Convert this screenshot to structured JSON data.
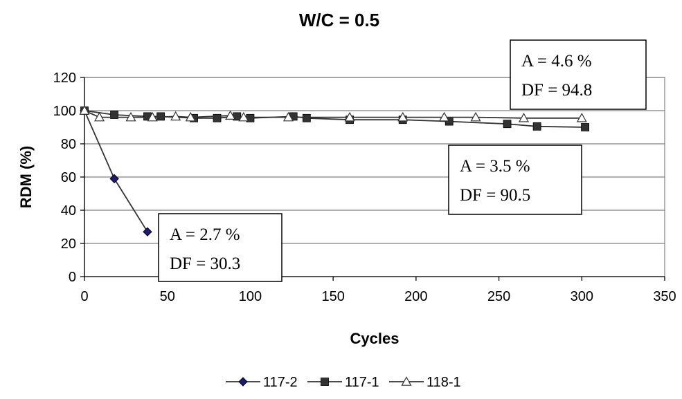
{
  "chart_data": {
    "type": "line",
    "title": "W/C = 0.5",
    "xlabel": "Cycles",
    "ylabel": "RDM (%)",
    "xlim": [
      0,
      350
    ],
    "ylim": [
      0,
      120
    ],
    "xticks": [
      0,
      50,
      100,
      150,
      200,
      250,
      300,
      350
    ],
    "yticks": [
      0,
      20,
      40,
      60,
      80,
      100,
      120
    ],
    "grid": "horizontal",
    "legend": "bottom",
    "series": [
      {
        "name": "117-2",
        "marker": "diamond",
        "color": "#1a1a7a",
        "x": [
          0,
          18,
          38
        ],
        "y": [
          100,
          59,
          27
        ]
      },
      {
        "name": "117-1",
        "marker": "square",
        "color": "#333333",
        "x": [
          0,
          18,
          38,
          46,
          66,
          80,
          92,
          100,
          126,
          134,
          160,
          192,
          220,
          255,
          273,
          302
        ],
        "y": [
          100,
          97.5,
          96.5,
          96.5,
          95.5,
          95.5,
          96.5,
          95.5,
          96.5,
          95.5,
          94.5,
          94.5,
          93.5,
          92,
          90.5,
          90
        ]
      },
      {
        "name": "118-1",
        "marker": "triangle",
        "color": "#333333",
        "x": [
          0,
          9,
          28,
          41,
          55,
          64,
          88,
          96,
          123,
          160,
          192,
          217,
          236,
          265,
          300
        ],
        "y": [
          100,
          96,
          96,
          96,
          96.5,
          96,
          97,
          96,
          96,
          96,
          96,
          96,
          96,
          95.5,
          95.5
        ]
      }
    ],
    "annotations": [
      {
        "line1": "A = 4.6 %",
        "line2": "DF = 94.8"
      },
      {
        "line1": "A = 3.5 %",
        "line2": "DF = 90.5"
      },
      {
        "line1": "A = 2.7 %",
        "line2": "DF = 30.3"
      }
    ]
  }
}
